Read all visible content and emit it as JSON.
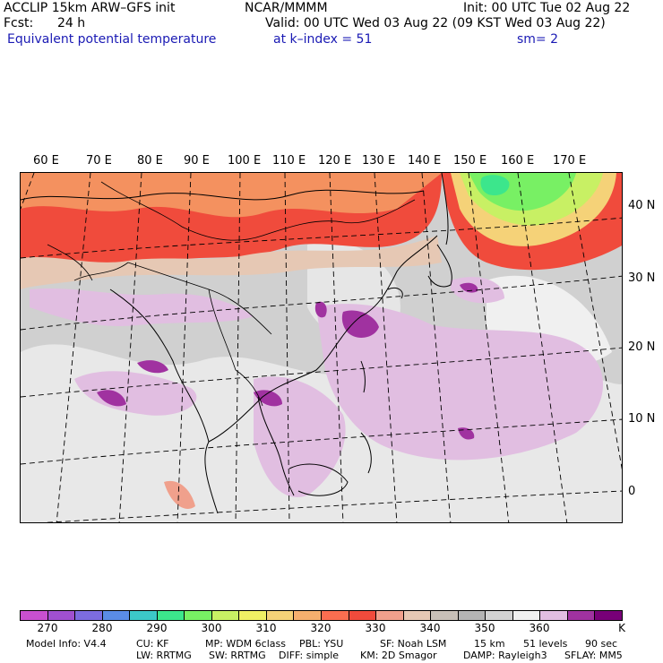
{
  "header": {
    "model_title": "ACCLIP 15km ARW–GFS init",
    "fcst_label": "Fcst:",
    "fcst_value": "24 h",
    "field": "Equivalent potential temperature",
    "producer": "NCAR/MMMM",
    "init": "Init: 00 UTC Tue 02 Aug 22",
    "valid": "Valid: 00 UTC Wed 03 Aug 22 (09 KST Wed 03 Aug 22)",
    "level": "at k–index =  51",
    "smoothing": "sm= 2"
  },
  "map": {
    "longitude_labels": [
      "60 E",
      "70 E",
      "80 E",
      "90 E",
      "100 E",
      "110 E",
      "120 E",
      "130 E",
      "140 E",
      "150 E",
      "160 E",
      "170 E"
    ],
    "latitude_labels": [
      "40 N",
      "30 N",
      "20 N",
      "10 N",
      "0"
    ]
  },
  "colorbar": {
    "colors": [
      "#c850d0",
      "#a050d0",
      "#7c6ce0",
      "#5a8ce6",
      "#3cc8c8",
      "#3ce68c",
      "#78f064",
      "#c8f064",
      "#f0f064",
      "#f5d278",
      "#f5af6e",
      "#fa6e50",
      "#f04b3c",
      "#f0a08c",
      "#e6c8b4",
      "#c8c0b8",
      "#b4b4b4",
      "#d2d2d2",
      "#f0f0f0",
      "#e1bee1",
      "#a032a0",
      "#780078"
    ],
    "tick_labels": [
      "270",
      "280",
      "290",
      "300",
      "310",
      "320",
      "330",
      "340",
      "350",
      "360"
    ],
    "unit": "K"
  },
  "footer": {
    "line1": [
      "Model Info: V4.4",
      "CU: KF",
      "MP: WDM 6class",
      "PBL: YSU",
      "SF: Noah LSM",
      "15 km",
      "51 levels",
      "90 sec"
    ],
    "line2": [
      "LW: RRTMG",
      "SW: RRTMG",
      "DIFF: simple",
      "KM: 2D Smagor",
      "DAMP: Rayleigh3",
      "SFLAY: MM5"
    ]
  }
}
